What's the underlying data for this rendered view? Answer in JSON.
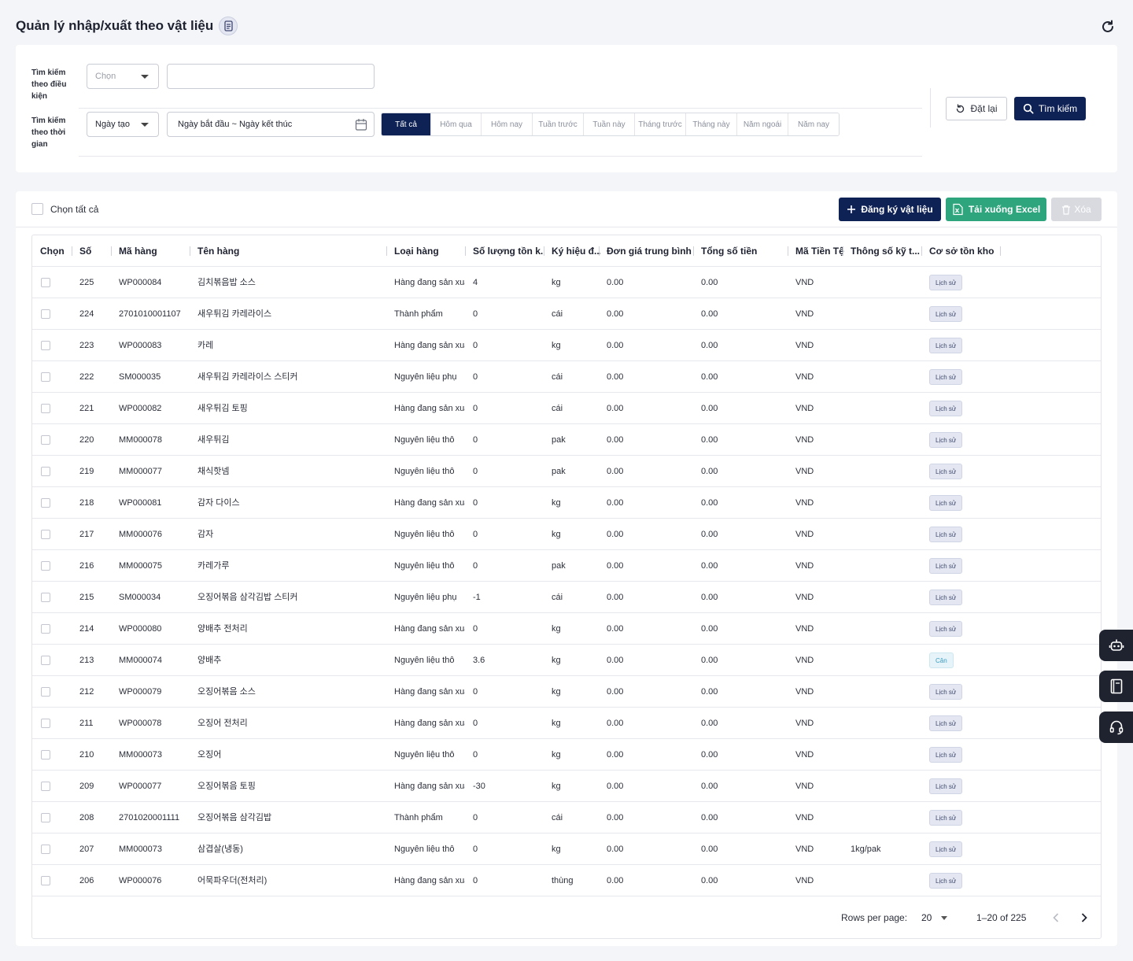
{
  "page": {
    "title": "Quản lý nhập/xuất theo vật liệu"
  },
  "filters": {
    "condition_label": "Tìm kiếm theo điều kiện",
    "condition_select": "Chọn",
    "condition_input_value": "",
    "time_label": "Tìm kiếm theo thời gian",
    "time_select": "Ngày tạo",
    "date_range": "Ngày bắt đầu ~ Ngày kết thúc",
    "quick_ranges": [
      "Tất cả",
      "Hôm qua",
      "Hôm nay",
      "Tuần trước",
      "Tuần này",
      "Tháng trước",
      "Tháng này",
      "Năm ngoái",
      "Năm nay"
    ],
    "active_quick_range": "Tất cả",
    "reset_label": "Đặt lại",
    "search_label": "Tìm kiếm"
  },
  "toolbar": {
    "select_all_label": "Chọn tất cả",
    "register_label": "Đăng ký vật liệu",
    "excel_label": "Tải xuống Excel",
    "delete_label": "Xóa"
  },
  "table": {
    "columns": [
      "Chọn",
      "Số",
      "Mã hàng",
      "Tên hàng",
      "Loại hàng",
      "Số lượng tồn k...",
      "Ký hiệu đ...",
      "Đơn giá trung bình",
      "Tổng số tiền",
      "Mã Tiền Tệ",
      "Thông số kỹ t...",
      "Cơ sở tồn kho"
    ],
    "rows": [
      {
        "no": "225",
        "code": "WP000084",
        "name": "김치볶음밥 소스",
        "type": "Hàng đang sản xuất",
        "qty": "4",
        "unit": "kg",
        "price": "0.00",
        "total": "0.00",
        "currency": "VND",
        "spec": "",
        "basis": "Lịch sử"
      },
      {
        "no": "224",
        "code": "2701010001107",
        "name": "새우튀김 카레라이스",
        "type": "Thành phẩm",
        "qty": "0",
        "unit": "cái",
        "price": "0.00",
        "total": "0.00",
        "currency": "VND",
        "spec": "",
        "basis": "Lịch sử"
      },
      {
        "no": "223",
        "code": "WP000083",
        "name": "카레",
        "type": "Hàng đang sản xuất",
        "qty": "0",
        "unit": "kg",
        "price": "0.00",
        "total": "0.00",
        "currency": "VND",
        "spec": "",
        "basis": "Lịch sử"
      },
      {
        "no": "222",
        "code": "SM000035",
        "name": "새우튀김 카레라이스 스티커",
        "type": "Nguyên liệu phụ",
        "qty": "0",
        "unit": "cái",
        "price": "0.00",
        "total": "0.00",
        "currency": "VND",
        "spec": "",
        "basis": "Lịch sử"
      },
      {
        "no": "221",
        "code": "WP000082",
        "name": "새우튀김 토핑",
        "type": "Hàng đang sản xuất",
        "qty": "0",
        "unit": "cái",
        "price": "0.00",
        "total": "0.00",
        "currency": "VND",
        "spec": "",
        "basis": "Lịch sử"
      },
      {
        "no": "220",
        "code": "MM000078",
        "name": "새우튀김",
        "type": "Nguyên liệu thô",
        "qty": "0",
        "unit": "pak",
        "price": "0.00",
        "total": "0.00",
        "currency": "VND",
        "spec": "",
        "basis": "Lịch sử"
      },
      {
        "no": "219",
        "code": "MM000077",
        "name": "채식핫넴",
        "type": "Nguyên liệu thô",
        "qty": "0",
        "unit": "pak",
        "price": "0.00",
        "total": "0.00",
        "currency": "VND",
        "spec": "",
        "basis": "Lịch sử"
      },
      {
        "no": "218",
        "code": "WP000081",
        "name": "감자 다이스",
        "type": "Hàng đang sản xuất",
        "qty": "0",
        "unit": "kg",
        "price": "0.00",
        "total": "0.00",
        "currency": "VND",
        "spec": "",
        "basis": "Lịch sử"
      },
      {
        "no": "217",
        "code": "MM000076",
        "name": "감자",
        "type": "Nguyên liệu thô",
        "qty": "0",
        "unit": "kg",
        "price": "0.00",
        "total": "0.00",
        "currency": "VND",
        "spec": "",
        "basis": "Lịch sử"
      },
      {
        "no": "216",
        "code": "MM000075",
        "name": "카레가루",
        "type": "Nguyên liệu thô",
        "qty": "0",
        "unit": "pak",
        "price": "0.00",
        "total": "0.00",
        "currency": "VND",
        "spec": "",
        "basis": "Lịch sử"
      },
      {
        "no": "215",
        "code": "SM000034",
        "name": "오징어볶음 삼각김밥 스티커",
        "type": "Nguyên liệu phụ",
        "qty": "-1",
        "unit": "cái",
        "price": "0.00",
        "total": "0.00",
        "currency": "VND",
        "spec": "",
        "basis": "Lịch sử"
      },
      {
        "no": "214",
        "code": "WP000080",
        "name": "양배추 전처리",
        "type": "Hàng đang sản xuất",
        "qty": "0",
        "unit": "kg",
        "price": "0.00",
        "total": "0.00",
        "currency": "VND",
        "spec": "",
        "basis": "Lịch sử"
      },
      {
        "no": "213",
        "code": "MM000074",
        "name": "양배추",
        "type": "Nguyên liệu thô",
        "qty": "3.6",
        "unit": "kg",
        "price": "0.00",
        "total": "0.00",
        "currency": "VND",
        "spec": "",
        "basis": "Cân"
      },
      {
        "no": "212",
        "code": "WP000079",
        "name": "오징어볶음 소스",
        "type": "Hàng đang sản xuất",
        "qty": "0",
        "unit": "kg",
        "price": "0.00",
        "total": "0.00",
        "currency": "VND",
        "spec": "",
        "basis": "Lịch sử"
      },
      {
        "no": "211",
        "code": "WP000078",
        "name": "오징어 전처리",
        "type": "Hàng đang sản xuất",
        "qty": "0",
        "unit": "kg",
        "price": "0.00",
        "total": "0.00",
        "currency": "VND",
        "spec": "",
        "basis": "Lịch sử"
      },
      {
        "no": "210",
        "code": "MM000073",
        "name": "오징어",
        "type": "Nguyên liệu thô",
        "qty": "0",
        "unit": "kg",
        "price": "0.00",
        "total": "0.00",
        "currency": "VND",
        "spec": "",
        "basis": "Lịch sử"
      },
      {
        "no": "209",
        "code": "WP000077",
        "name": "오징어볶음 토핑",
        "type": "Hàng đang sản xuất",
        "qty": "-30",
        "unit": "kg",
        "price": "0.00",
        "total": "0.00",
        "currency": "VND",
        "spec": "",
        "basis": "Lịch sử"
      },
      {
        "no": "208",
        "code": "2701020001111",
        "name": "오징어볶음 삼각김밥",
        "type": "Thành phẩm",
        "qty": "0",
        "unit": "cái",
        "price": "0.00",
        "total": "0.00",
        "currency": "VND",
        "spec": "",
        "basis": "Lịch sử"
      },
      {
        "no": "207",
        "code": "MM000073",
        "name": "삼겹살(냉동)",
        "type": "Nguyên liệu thô",
        "qty": "0",
        "unit": "kg",
        "price": "0.00",
        "total": "0.00",
        "currency": "VND",
        "spec": "1kg/pak",
        "basis": "Lịch sử"
      },
      {
        "no": "206",
        "code": "WP000076",
        "name": "어묵파우더(전처리)",
        "type": "Hàng đang sản xuất",
        "qty": "0",
        "unit": "thùng",
        "price": "0.00",
        "total": "0.00",
        "currency": "VND",
        "spec": "",
        "basis": "Lịch sử"
      }
    ]
  },
  "pagination": {
    "rows_per_page_label": "Rows per page:",
    "rows_per_page": "20",
    "range_text": "1–20 of 225"
  },
  "side_tabs": [
    "robot-icon",
    "book-icon",
    "headset-icon"
  ],
  "colors": {
    "primary": "#0f2256",
    "excel": "#2ea57d",
    "disabled": "#d8dadf"
  }
}
